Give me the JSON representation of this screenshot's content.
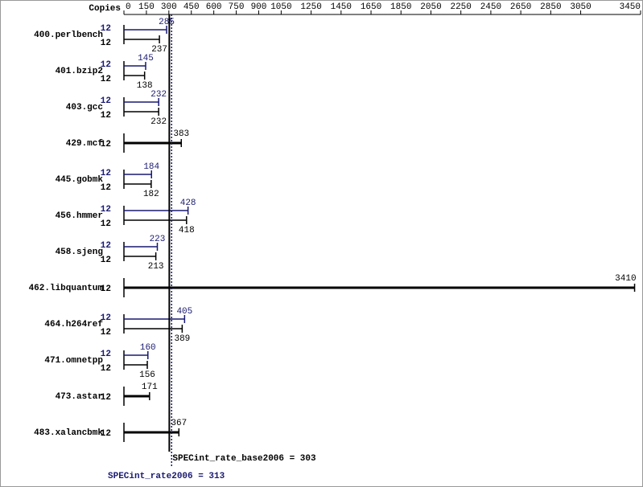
{
  "chart_data": {
    "type": "bar",
    "copies_label": "Copies",
    "xlim": [
      0,
      3450
    ],
    "xticks": [
      0,
      150,
      300,
      450,
      600,
      750,
      900,
      1050,
      1250,
      1450,
      1650,
      1850,
      2050,
      2250,
      2450,
      2650,
      2850,
      3050,
      3450
    ],
    "categories": [
      "400.perlbench",
      "401.bzip2",
      "403.gcc",
      "429.mcf",
      "445.gobmk",
      "456.hmmer",
      "458.sjeng",
      "462.libquantum",
      "464.h264ref",
      "471.omnetpp",
      "473.astar",
      "483.xalancbmk"
    ],
    "series": [
      {
        "color": "#191970",
        "copies": [
          12,
          12,
          12,
          null,
          12,
          12,
          12,
          null,
          12,
          12,
          null,
          null
        ],
        "values": [
          285,
          145,
          232,
          null,
          184,
          428,
          223,
          null,
          405,
          160,
          null,
          null
        ]
      },
      {
        "color": "#000000",
        "copies": [
          12,
          12,
          12,
          12,
          12,
          12,
          12,
          12,
          12,
          12,
          12,
          12
        ],
        "values": [
          237,
          138,
          232,
          383,
          182,
          418,
          213,
          3410,
          389,
          156,
          171,
          367
        ]
      }
    ],
    "references": [
      {
        "label": "SPECint_rate_base2006 = 303",
        "value": 303,
        "color": "#000000",
        "dashed": false
      },
      {
        "label": "SPECint_rate2006 = 313",
        "value": 313,
        "color": "#191970",
        "dashed": true
      }
    ]
  }
}
